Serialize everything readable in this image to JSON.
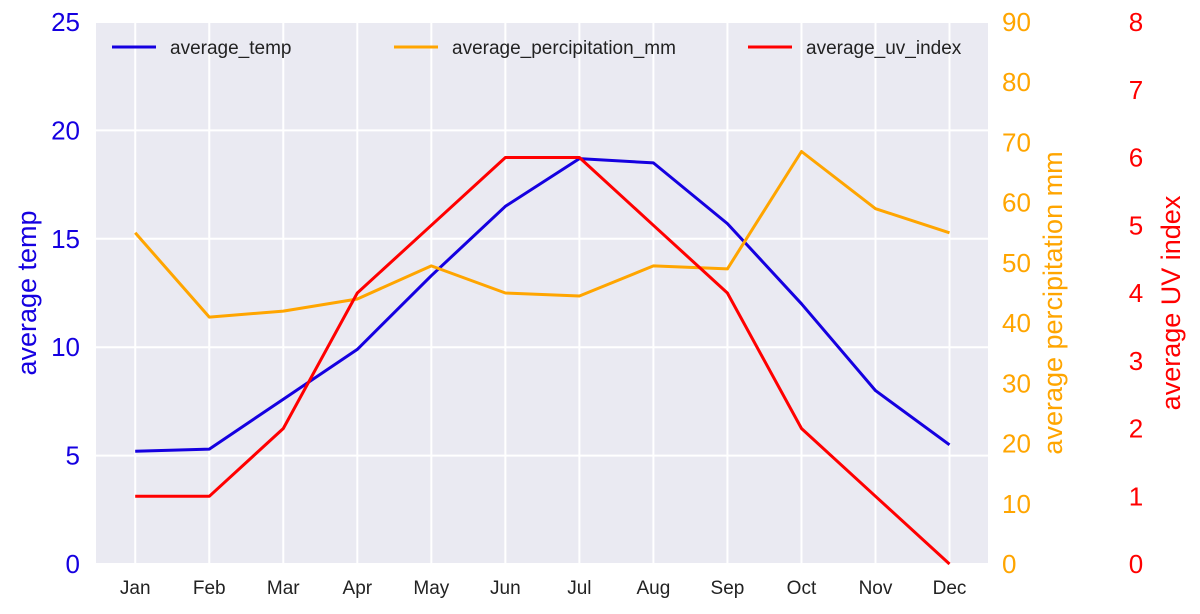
{
  "chart_data": {
    "type": "line",
    "categories": [
      "Jan",
      "Feb",
      "Mar",
      "Apr",
      "May",
      "Jun",
      "Jul",
      "Aug",
      "Sep",
      "Oct",
      "Nov",
      "Dec"
    ],
    "grid": true,
    "legend_position": "top",
    "background_color": "#eaeaf2",
    "axes": {
      "left": {
        "label": "average temp",
        "color": "#1500e0",
        "range": [
          0,
          25
        ],
        "ticks": [
          0,
          5,
          10,
          15,
          20,
          25
        ]
      },
      "right1": {
        "label": "average percipitation mm",
        "color": "#ffa500",
        "range": [
          0,
          90
        ],
        "ticks": [
          0,
          10,
          20,
          30,
          40,
          50,
          60,
          70,
          80,
          90
        ]
      },
      "right2": {
        "label": "average UV index",
        "color": "#ff0000",
        "range": [
          0,
          8
        ],
        "ticks": [
          0,
          1,
          2,
          3,
          4,
          5,
          6,
          7,
          8
        ]
      }
    },
    "series": [
      {
        "name": "average_temp",
        "axis": "left",
        "color": "#1500e0",
        "values": [
          5.2,
          5.3,
          7.6,
          9.9,
          13.3,
          16.5,
          18.7,
          18.5,
          15.7,
          12.0,
          8.0,
          5.5
        ]
      },
      {
        "name": "average_percipitation_mm",
        "axis": "right1",
        "color": "#ffa500",
        "values": [
          55,
          41,
          42,
          44,
          49.5,
          45,
          44.5,
          49.5,
          49,
          68.5,
          59,
          55
        ]
      },
      {
        "name": "average_uv_index",
        "axis": "right2",
        "color": "#ff0000",
        "values": [
          1,
          1,
          2,
          4,
          5,
          6,
          6,
          5,
          4,
          2,
          1,
          0
        ]
      }
    ]
  }
}
